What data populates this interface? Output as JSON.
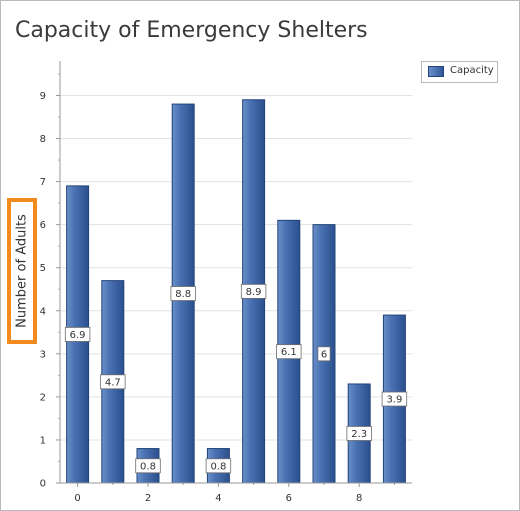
{
  "chart_data": {
    "type": "bar",
    "title": "Capacity of Emergency Shelters",
    "xlabel": "",
    "ylabel": "Number of Adults",
    "x": [
      0,
      1,
      2,
      3,
      4,
      5,
      6,
      7,
      8,
      9
    ],
    "xticks": [
      "0",
      "2",
      "4",
      "6",
      "8"
    ],
    "yticks": [
      "0",
      "1",
      "2",
      "3",
      "4",
      "5",
      "6",
      "7",
      "8",
      "9"
    ],
    "ylim": [
      0,
      9.8
    ],
    "series": [
      {
        "name": "Capacity",
        "values": [
          6.9,
          4.7,
          0.8,
          8.8,
          0.8,
          8.9,
          6.1,
          6,
          2.3,
          3.9
        ],
        "data_labels": [
          "6.9",
          "4.7",
          "0.8",
          "8.8",
          "0.8",
          "8.9",
          "6.1",
          "6",
          "2.3",
          "3.9"
        ]
      }
    ],
    "legend_position": "top-right",
    "grid": true,
    "colors": {
      "bar_dark": "#2f5597",
      "bar_light": "#6a8fc8",
      "highlight": "#f38a1d"
    }
  }
}
